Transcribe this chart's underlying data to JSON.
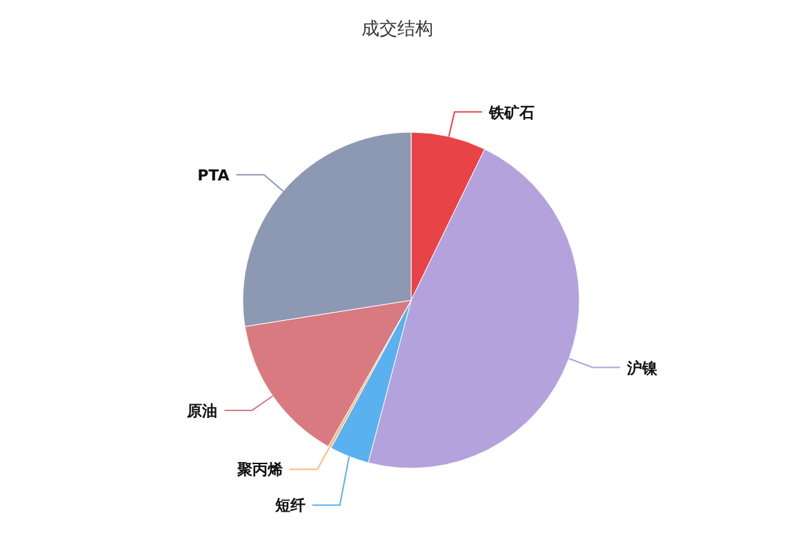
{
  "chart_data": {
    "type": "pie",
    "title": "成交结构",
    "categories": [
      "铁矿石",
      "沪镍",
      "短纤",
      "聚丙烯",
      "原油",
      "PTA"
    ],
    "values": [
      7.2,
      46.9,
      3.8,
      0.3,
      14.3,
      27.5
    ],
    "colors": [
      "#e84346",
      "#b3a2dc",
      "#5ab1ef",
      "#ffb980",
      "#d87a80",
      "#8d98b3"
    ]
  }
}
